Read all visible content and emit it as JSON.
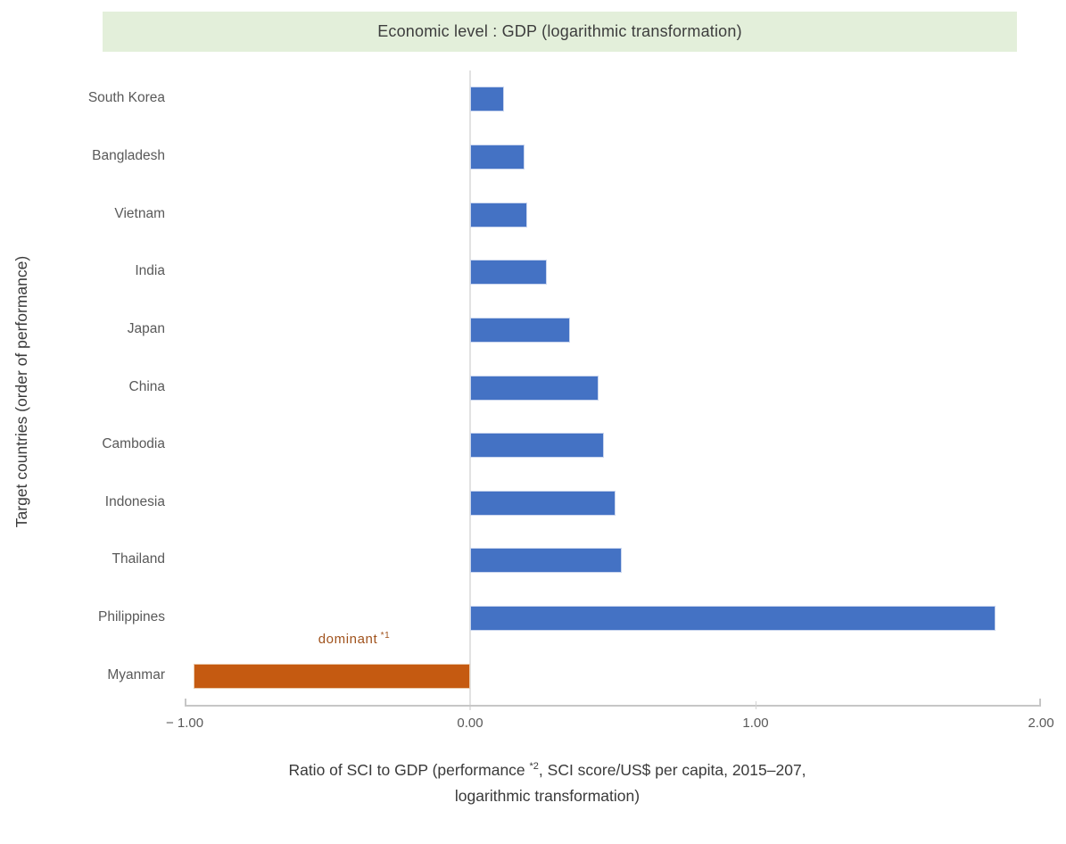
{
  "chart_data": {
    "type": "bar",
    "orientation": "horizontal",
    "title": "Economic level : GDP (logarithmic transformation)",
    "ylabel": "Target countries (order of performance)",
    "xlabel_line1_pre": "Ratio of SCI to GDP (performance ",
    "xlabel_note_marker": "*2",
    "xlabel_line1_post": ", SCI score/US$ per capita, 2015–207,",
    "xlabel_line2": "logarithmic transformation)",
    "categories": [
      "South Korea",
      "Bangladesh",
      "Vietnam",
      "India",
      "Japan",
      "China",
      "Cambodia",
      "Indonesia",
      "Thailand",
      "Philippines",
      "Myanmar"
    ],
    "values": [
      0.12,
      0.19,
      0.2,
      0.27,
      0.35,
      0.45,
      0.47,
      0.51,
      0.53,
      1.84,
      -0.97
    ],
    "xlim": [
      -1.0,
      2.0
    ],
    "xticks": [
      {
        "value": -1.0,
        "label": "− 1.00"
      },
      {
        "value": 0.0,
        "label": "0.00"
      },
      {
        "value": 1.0,
        "label": "1.00"
      },
      {
        "value": 2.0,
        "label": "2.00"
      }
    ],
    "annotation": {
      "text": "dominant",
      "marker": "*1",
      "target_category": "Myanmar",
      "color": "#a0521c"
    },
    "legend": null,
    "grid": "zero-line-only",
    "colors": {
      "positive_bar": "#4472c4",
      "positive_bar_border": "#c9d5ee",
      "negative_bar": "#c55a11",
      "negative_bar_border": "#eac9ab",
      "title_banner_bg": "#e3efda",
      "axis_line": "#c6c6c6",
      "zero_line": "#e2e2e2",
      "tick_text": "#595959",
      "category_text": "#595959",
      "axis_title_text": "#3a3a3a"
    }
  }
}
